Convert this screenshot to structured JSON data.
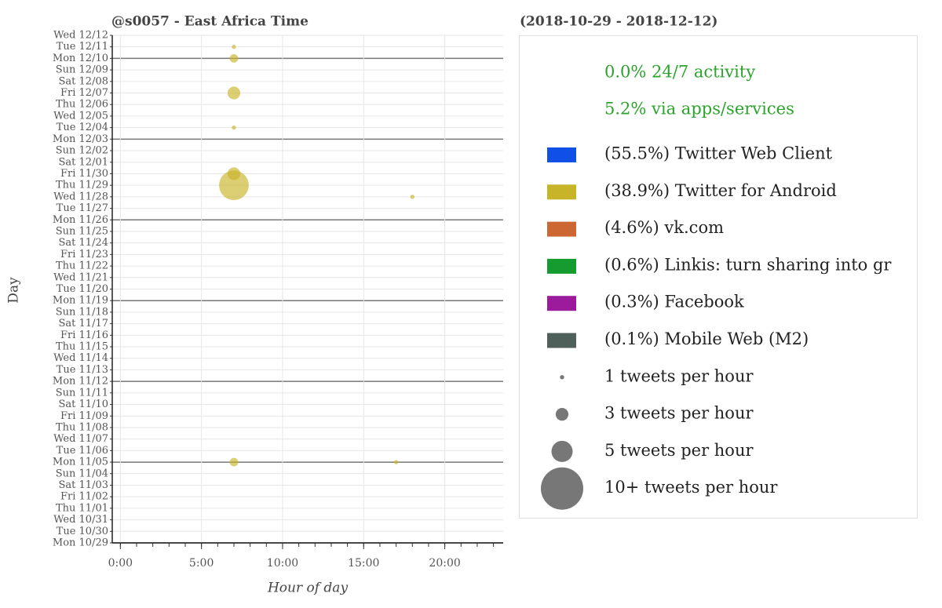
{
  "chart_data": {
    "type": "scatter",
    "title": "@s0057 - East Africa Time",
    "subtitle": "(2018-10-29 - 2018-12-12)",
    "x_label": "Hour of day",
    "y_label": "Day",
    "xlim": [
      -0.5,
      23.6
    ],
    "xticks": [
      {
        "value": 0,
        "label": "0:00"
      },
      {
        "value": 5,
        "label": "5:00"
      },
      {
        "value": 10,
        "label": "10:00"
      },
      {
        "value": 15,
        "label": "15:00"
      },
      {
        "value": 20,
        "label": "20:00"
      }
    ],
    "xminorticks": [
      0,
      1,
      2,
      3,
      4,
      5,
      6,
      7,
      8,
      9,
      10,
      11,
      12,
      13,
      14,
      15,
      16,
      17,
      18,
      19,
      20,
      21,
      22,
      23
    ],
    "grid": true,
    "categories": [
      "Mon 10/29",
      "Tue 10/30",
      "Wed 10/31",
      "Thu 11/01",
      "Fri 11/02",
      "Sat 11/03",
      "Sun 11/04",
      "Mon 11/05",
      "Tue 11/06",
      "Wed 11/07",
      "Thu 11/08",
      "Fri 11/09",
      "Sat 11/10",
      "Sun 11/11",
      "Mon 11/12",
      "Tue 11/13",
      "Wed 11/14",
      "Thu 11/15",
      "Fri 11/16",
      "Sat 11/17",
      "Sun 11/18",
      "Mon 11/19",
      "Tue 11/20",
      "Wed 11/21",
      "Thu 11/22",
      "Fri 11/23",
      "Sat 11/24",
      "Sun 11/25",
      "Mon 11/26",
      "Tue 11/27",
      "Wed 11/28",
      "Thu 11/29",
      "Fri 11/30",
      "Sat 12/01",
      "Sun 12/02",
      "Mon 12/03",
      "Tue 12/04",
      "Wed 12/05",
      "Thu 12/06",
      "Fri 12/07",
      "Sat 12/08",
      "Sun 12/09",
      "Mon 12/10",
      "Tue 12/11",
      "Wed 12/12"
    ],
    "summary": [
      "0.0% 24/7 activity",
      "5.2% via apps/services"
    ],
    "summary_color": "#2aa32a",
    "series": [
      {
        "name": "(55.5%) Twitter Web Client",
        "color": "#1150e6",
        "x": [],
        "y": [],
        "sizes": []
      },
      {
        "name": "(38.9%) Twitter for Android",
        "color": "#c8b428",
        "x": [
          7,
          7,
          7,
          7,
          7,
          7,
          18,
          7,
          17
        ],
        "y": [
          "Tue 12/11",
          "Mon 12/10",
          "Fri 12/07",
          "Tue 12/04",
          "Fri 11/30",
          "Thu 11/29",
          "Wed 11/28",
          "Mon 11/05",
          "Mon 11/05"
        ],
        "sizes": [
          1,
          2,
          3,
          1,
          3,
          7,
          1,
          2,
          1
        ]
      },
      {
        "name": "(4.6%) vk.com",
        "color": "#cc6633",
        "x": [],
        "y": [],
        "sizes": []
      },
      {
        "name": "(0.6%) Linkis: turn sharing into gr",
        "color": "#149c2e",
        "x": [],
        "y": [],
        "sizes": []
      },
      {
        "name": "(0.3%) Facebook",
        "color": "#9c1a9c",
        "x": [],
        "y": [],
        "sizes": []
      },
      {
        "name": "(0.1%) Mobile Web (M2)",
        "color": "#4f5f5a",
        "x": [],
        "y": [],
        "sizes": []
      }
    ],
    "size_legend": [
      {
        "size": 1,
        "label": "1 tweets per hour"
      },
      {
        "size": 3,
        "label": "3 tweets per hour"
      },
      {
        "size": 5,
        "label": "5 tweets per hour"
      },
      {
        "size": 10,
        "label": "10+ tweets per hour"
      }
    ],
    "size_legend_color": "#777777"
  }
}
